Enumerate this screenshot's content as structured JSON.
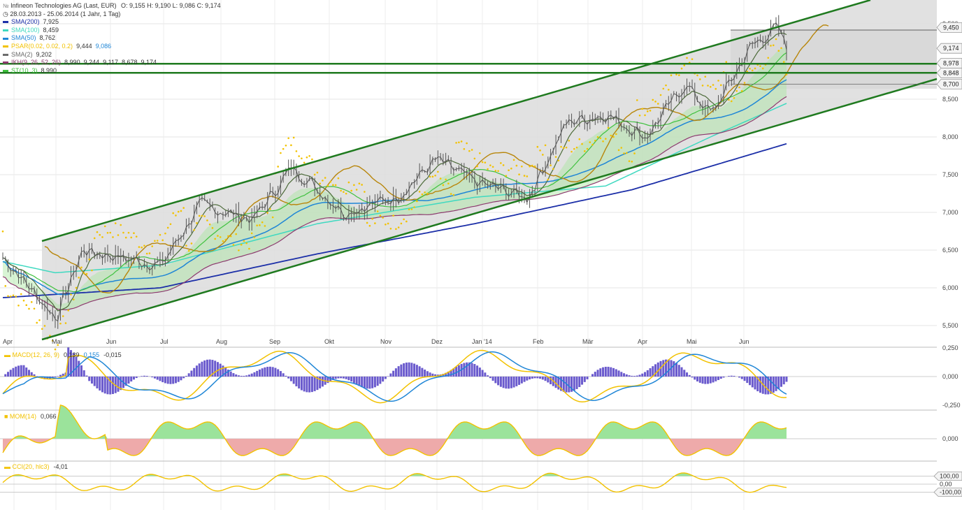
{
  "header": {
    "title": "Infineon Technologies AG (Last, EUR)",
    "ohlc": "O: 9,155  H: 9,190  L: 9,086  C: 9,174",
    "period": "28.03.2013 - 25.06.2014 (1 Jahr, 1 Tag)"
  },
  "indicators": [
    {
      "label": "SMA(200)",
      "value": "7,925",
      "color": "#1c2fa8"
    },
    {
      "label": "SMA(100)",
      "value": "8,459",
      "color": "#3fd9c0"
    },
    {
      "label": "SMA(50)",
      "value": "8,762",
      "color": "#1f86d6"
    },
    {
      "label": "PSAR(0.02, 0.02, 0.2)",
      "value": "9,444",
      "value2": "9,086",
      "color": "#f2c200"
    },
    {
      "label": "SMA(2)",
      "value": "9,202",
      "color": "#6c6c6c"
    },
    {
      "label": "IKH(9, 26, 52, 26)",
      "value": "8,990",
      "value2": "9,244",
      "value3": "9,117",
      "value4": "8,678",
      "value5": "9,174",
      "color": "#8c3a6e"
    },
    {
      "label": "ST(10, 3)",
      "value": "8,990",
      "color": "#3ec13e"
    }
  ],
  "price_axis": {
    "ticks": [
      "9,500",
      "8,500",
      "8,000",
      "7,500",
      "7,000",
      "6,500",
      "6,000",
      "5,500"
    ],
    "tick_values": [
      9.5,
      8.5,
      8.0,
      7.5,
      7.0,
      6.5,
      6.0,
      5.5
    ],
    "boxes": [
      {
        "label": "9,450",
        "value": 9.45
      },
      {
        "label": "9,174",
        "value": 9.174
      },
      {
        "label": "8,978",
        "value": 8.978
      },
      {
        "label": "8,848",
        "value": 8.848
      },
      {
        "label": "8,700",
        "value": 8.7
      }
    ]
  },
  "time_axis": {
    "labels": [
      "Apr",
      "Mai",
      "Jun",
      "Jul",
      "Aug",
      "Sep",
      "Okt",
      "Nov",
      "Dez",
      "Jan '14",
      "Feb",
      "Mär",
      "Apr",
      "Mai",
      "Jun"
    ]
  },
  "macd": {
    "label": "MACD(12, 26, 9)",
    "value": "0,139",
    "value2": "0,155",
    "value3": "-0,015",
    "ticks": [
      "0,250",
      "0,000",
      "-0,250"
    ],
    "tick_values": [
      0.25,
      0.0,
      -0.25
    ]
  },
  "mom": {
    "label": "MOM(14)",
    "value": "0,066",
    "ticks": [
      "0,000"
    ],
    "tick_values": [
      0.0
    ]
  },
  "cci": {
    "label": "CCI(20, hlc3)",
    "value": "-4,01",
    "ticks": [
      "100,00",
      "0,00",
      "-100,00"
    ],
    "tick_values": [
      100,
      0,
      -100
    ]
  },
  "colors": {
    "channel": "#1f7a1f",
    "price": "#555555",
    "sma200": "#1c2fa8",
    "sma100": "#3fd9c0",
    "sma50": "#1f86d6",
    "psar": "#f2c200",
    "kijun": "#b8860b",
    "tenkan": "#8c3a6e",
    "cloud_up": "#a8e6a0",
    "cloud_dn": "#f2b8b8",
    "macd_line": "#f2c200",
    "macd_signal": "#1f86d6",
    "macd_hist": "#6a5acd",
    "mom_pos": "#9be39b",
    "mom_neg": "#eeaaaa"
  },
  "chart_data": {
    "type": "line",
    "title": "Infineon Technologies AG (Last, EUR)",
    "period": "28.03.2013 - 25.06.2014 (1 Jahr, 1 Tag)",
    "ylim": [
      5.3,
      9.7
    ],
    "x": [
      "Apr",
      "Mai",
      "Jun",
      "Jul",
      "Aug",
      "Sep",
      "Okt",
      "Nov",
      "Dez",
      "Jan '14",
      "Feb",
      "Mär",
      "Apr",
      "Mai",
      "Jun"
    ],
    "series": [
      {
        "name": "SMA(200)",
        "values": [
          5.87,
          5.9,
          5.98,
          6.05,
          6.2,
          6.45,
          6.62,
          6.75,
          6.88,
          7.05,
          7.15,
          7.35,
          7.55,
          7.72,
          7.92
        ]
      },
      {
        "name": "SMA(100)",
        "values": [
          6.35,
          6.2,
          6.28,
          6.35,
          6.6,
          6.75,
          6.9,
          7.05,
          7.15,
          7.25,
          7.35,
          7.6,
          8.0,
          8.3,
          8.46
        ]
      },
      {
        "name": "SMA(50)",
        "values": [
          6.55,
          6.25,
          6.4,
          6.6,
          6.9,
          7.05,
          7.35,
          7.3,
          7.35,
          7.5,
          7.7,
          7.9,
          8.2,
          8.5,
          8.76
        ]
      }
    ]
  }
}
